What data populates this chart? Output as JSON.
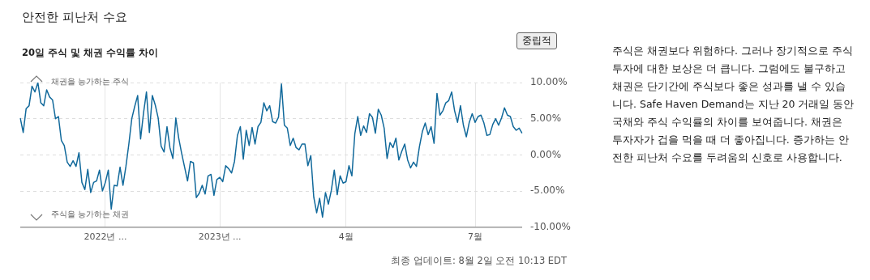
{
  "chart_data": {
    "type": "line",
    "title": "안전한 피난처 수요",
    "subtitle": "20일 주식 및 채권 수익률 차이",
    "categories": [
      null,
      null,
      null,
      null,
      null,
      null,
      null,
      null,
      null,
      null,
      null,
      null,
      null,
      null,
      null,
      null,
      null,
      null,
      null,
      null,
      null,
      null,
      null,
      null,
      null,
      null,
      null,
      null,
      null,
      "2022년 ...",
      null,
      null,
      null,
      null,
      null,
      null,
      null,
      null,
      null,
      null,
      null,
      null,
      null,
      null,
      null,
      null,
      null,
      null,
      null,
      null,
      null,
      null,
      null,
      null,
      null,
      null,
      null,
      null,
      null,
      null,
      null,
      null,
      null,
      null,
      null,
      null,
      null,
      null,
      "2023년 ...",
      null,
      null,
      null,
      null,
      null,
      null,
      null,
      null,
      null,
      null,
      null,
      null,
      null,
      null,
      null,
      null,
      null,
      null,
      null,
      null,
      null,
      null,
      null,
      null,
      null,
      null,
      null,
      null,
      null,
      null,
      null,
      null,
      null,
      null,
      null,
      null,
      null,
      null,
      null,
      null,
      null,
      null,
      "4월",
      null,
      null,
      null,
      null,
      null,
      null,
      null,
      null,
      null,
      null,
      null,
      null,
      null,
      null,
      null,
      null,
      null,
      null,
      null,
      null,
      null,
      null,
      null,
      null,
      null,
      null,
      null,
      null,
      null,
      null,
      null,
      null,
      null,
      null,
      null,
      null,
      null,
      null,
      null,
      null,
      null,
      null,
      null,
      "7월",
      null,
      null,
      null,
      null,
      null,
      null,
      null,
      null,
      null,
      null,
      null,
      null,
      null,
      null,
      null,
      null
    ],
    "series": [
      {
        "color": "#11699b",
        "values": [
          5.1,
          3.1,
          6.4,
          6.8,
          9.5,
          8.7,
          10.0,
          7.2,
          6.8,
          9.0,
          8.0,
          7.6,
          5.0,
          5.3,
          2.0,
          1.3,
          -1.0,
          -1.6,
          -0.8,
          -1.6,
          0.3,
          -3.8,
          -4.8,
          -2.0,
          -5.2,
          -3.8,
          -3.6,
          -2.1,
          -5.0,
          -3.8,
          -2.1,
          -7.5,
          -4.2,
          -4.3,
          -1.7,
          -4.2,
          -1.6,
          1.5,
          5.0,
          6.7,
          8.2,
          2.2,
          5.8,
          8.7,
          3.1,
          8.2,
          6.9,
          5.1,
          1.2,
          0.4,
          3.9,
          1.0,
          -0.5,
          5.1,
          2.3,
          0.2,
          -1.7,
          -3.6,
          -0.9,
          -1.1,
          -5.9,
          -5.3,
          -4.2,
          -5.4,
          -2.9,
          -2.7,
          -5.6,
          -3.4,
          -3.1,
          -3.7,
          -1.5,
          -1.9,
          -2.5,
          -0.9,
          2.7,
          3.9,
          -0.6,
          3.4,
          1.3,
          3.8,
          1.5,
          3.9,
          4.5,
          7.2,
          6.1,
          6.8,
          4.6,
          4.4,
          5.2,
          9.8,
          4.1,
          3.7,
          1.3,
          2.3,
          1.0,
          0.7,
          1.5,
          1.5,
          -1.5,
          -0.1,
          -5.8,
          -8.0,
          -6.0,
          -8.6,
          -5.2,
          -6.8,
          -4.9,
          -2.1,
          -5.5,
          -2.9,
          -3.9,
          -3.7,
          -1.5,
          -2.9,
          2.9,
          5.3,
          2.7,
          4.0,
          3.1,
          5.7,
          5.2,
          3.0,
          6.3,
          5.5,
          3.7,
          -0.5,
          1.7,
          1.0,
          2.3,
          -0.7,
          0.5,
          1.5,
          -0.7,
          -1.8,
          -1.0,
          -1.6,
          1.1,
          3.2,
          4.4,
          2.8,
          3.9,
          1.6,
          8.5,
          5.5,
          6.1,
          7.2,
          7.5,
          8.7,
          6.1,
          4.5,
          6.8,
          4.1,
          2.5,
          4.5,
          5.7,
          4.5,
          5.3,
          5.5,
          4.4,
          2.7,
          2.8,
          4.2,
          5.0,
          4.1,
          5.1,
          6.5,
          5.5,
          5.3,
          3.9,
          3.4,
          3.7,
          3.0
        ]
      }
    ],
    "ylim": [
      -10,
      10
    ],
    "yticks": [
      {
        "value": -10,
        "label": "-10.00%"
      },
      {
        "value": -5,
        "label": "-5.00%"
      },
      {
        "value": 0,
        "label": "0.00%"
      },
      {
        "value": 5,
        "label": "5.00%"
      },
      {
        "value": 10,
        "label": "10.00%"
      }
    ],
    "grid": true,
    "legend": false,
    "marker": "none",
    "line_style": "solid",
    "annotations": [
      "채권을 능가하는 주식",
      "주식을 능가하는 채권",
      "중립적",
      "주식은 채권보다 위험하다. 그러나 장기적으로 주식 투자에 대한 보상은 더 큽니다. 그럼에도 불구하고 채권은 단기간에 주식보다 좋은 성과를 낼 수 있습니다. Safe Haven Demand는 지난 20 거래일 동안 국채와 주식 수익률의 차이를 보여줍니다. 채권은 투자자가 겁을 먹을 때 더 좋아집니다. 증가하는 안전한 피난처 수요를 두려움의 신호로 사용합니다.",
      "최종 업데이트: 8월 2일 오전 10:13 EDT"
    ]
  }
}
